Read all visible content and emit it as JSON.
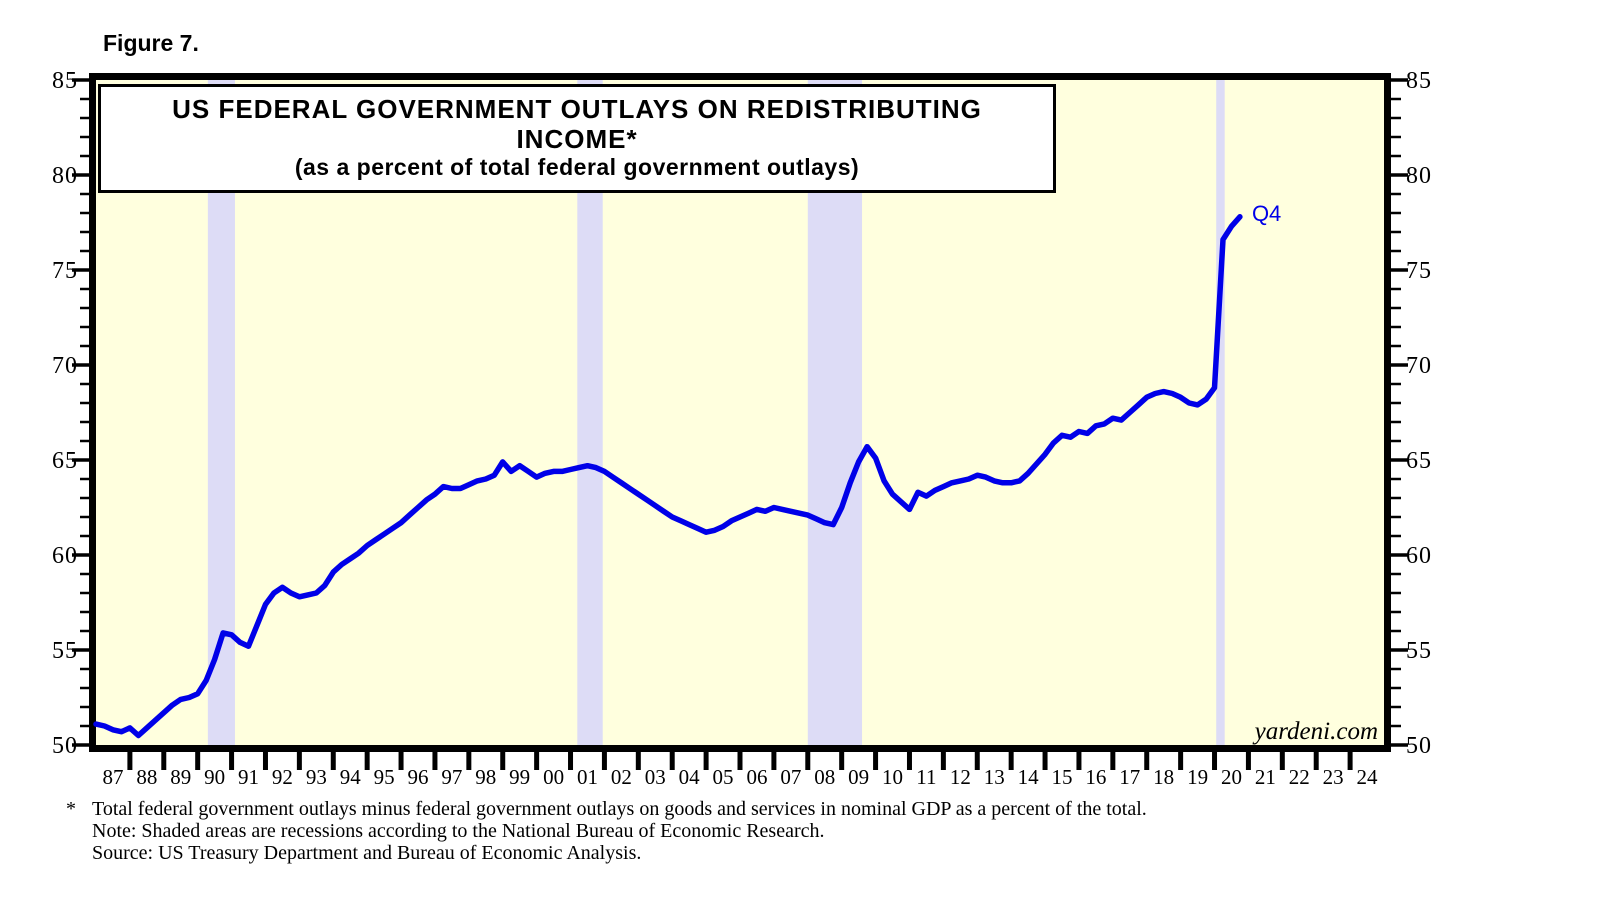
{
  "figure_label": "Figure 7.",
  "title": "US FEDERAL GOVERNMENT OUTLAYS ON REDISTRIBUTING INCOME*",
  "subtitle": "(as a percent of total federal government outlays)",
  "watermark": "yardeni.com",
  "end_label": "Q4",
  "footnotes": {
    "asterisk": "*",
    "line1": "Total federal government outlays minus federal government outlays on goods and services in nominal GDP as a percent of the total.",
    "line2": "Note: Shaded areas are recessions according to the National Bureau of Economic Research.",
    "line3": "Source: US Treasury Department and Bureau of Economic Analysis."
  },
  "colors": {
    "line": "#0000E8",
    "annotation": "#0000E8",
    "plot_bg": "#FFFFDE",
    "recession_band": "#DDDCF6",
    "frame": "#000000",
    "label": "#000000"
  },
  "chart_data": {
    "type": "line",
    "title": "US FEDERAL GOVERNMENT OUTLAYS ON REDISTRIBUTING INCOME* (as a percent of total federal government outlays)",
    "ylabel": "percent of total federal government outlays",
    "ylim": [
      50,
      85
    ],
    "y_major_ticks": [
      50,
      55,
      60,
      65,
      70,
      75,
      80,
      85
    ],
    "y_minor_step": 1,
    "x_start_year": 1987,
    "x_end_year": 2025,
    "x_tick_labels": [
      "87",
      "88",
      "89",
      "90",
      "91",
      "92",
      "93",
      "94",
      "95",
      "96",
      "97",
      "98",
      "99",
      "00",
      "01",
      "02",
      "03",
      "04",
      "05",
      "06",
      "07",
      "08",
      "09",
      "10",
      "11",
      "12",
      "13",
      "14",
      "15",
      "16",
      "17",
      "18",
      "19",
      "20",
      "21",
      "22",
      "23",
      "24"
    ],
    "recessions": [
      [
        1990.3,
        1991.1
      ],
      [
        2001.2,
        2001.95
      ],
      [
        2008.0,
        2009.6
      ],
      [
        2020.05,
        2020.3
      ]
    ],
    "last_point_label": "Q4",
    "series": [
      {
        "name": "US federal government outlays on redistributing income (% of total outlays)",
        "frequency": "quarterly",
        "start": "1987Q1",
        "end": "2020Q4",
        "values": [
          51.1,
          51.0,
          50.8,
          50.7,
          50.9,
          50.5,
          50.9,
          51.3,
          51.7,
          52.1,
          52.4,
          52.5,
          52.7,
          53.4,
          54.5,
          55.9,
          55.8,
          55.4,
          55.2,
          56.3,
          57.4,
          58.0,
          58.3,
          58.0,
          57.8,
          57.9,
          58.0,
          58.4,
          59.1,
          59.5,
          59.8,
          60.1,
          60.5,
          60.8,
          61.1,
          61.4,
          61.7,
          62.1,
          62.5,
          62.9,
          63.2,
          63.6,
          63.5,
          63.5,
          63.7,
          63.9,
          64.0,
          64.2,
          64.9,
          64.4,
          64.7,
          64.4,
          64.1,
          64.3,
          64.4,
          64.4,
          64.5,
          64.6,
          64.7,
          64.6,
          64.4,
          64.1,
          63.8,
          63.5,
          63.2,
          62.9,
          62.6,
          62.3,
          62.0,
          61.8,
          61.6,
          61.4,
          61.2,
          61.3,
          61.5,
          61.8,
          62.0,
          62.2,
          62.4,
          62.3,
          62.5,
          62.4,
          62.3,
          62.2,
          62.1,
          61.9,
          61.7,
          61.6,
          62.5,
          63.8,
          64.9,
          65.7,
          65.1,
          63.9,
          63.2,
          62.8,
          62.4,
          63.3,
          63.1,
          63.4,
          63.6,
          63.8,
          63.9,
          64.0,
          64.2,
          64.1,
          63.9,
          63.8,
          63.8,
          63.9,
          64.3,
          64.8,
          65.3,
          65.9,
          66.3,
          66.2,
          66.5,
          66.4,
          66.8,
          66.9,
          67.2,
          67.1,
          67.5,
          67.9,
          68.3,
          68.5,
          68.6,
          68.5,
          68.3,
          68.0,
          67.9,
          68.2,
          68.8,
          76.6,
          77.3,
          77.8
        ]
      }
    ]
  }
}
